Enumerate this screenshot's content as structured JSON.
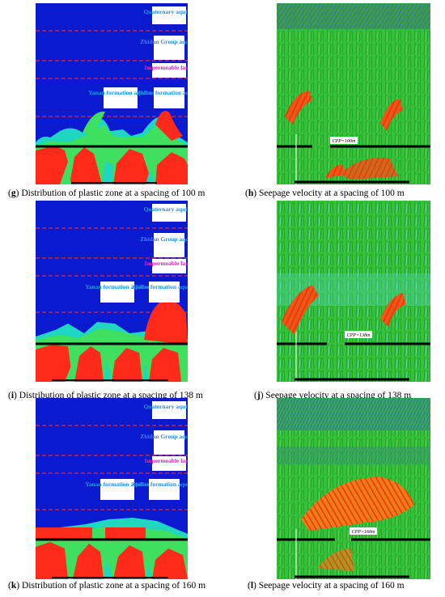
{
  "panels": [
    {
      "letter": "g",
      "caption": "Distribution of plastic zone at a spacing of 100 m",
      "labels": {
        "quaternary": "Quaternary aquifer",
        "zhidan": "Zhidan Group aquifer",
        "impermeable": "Impermeable layer",
        "yanan": "Yanan formation aquifer",
        "zhiluo": "Zhiluo formation aquifer"
      }
    },
    {
      "letter": "h",
      "caption": "Seepage velocity at a spacing of 100 m",
      "tag": "CPP=100m"
    },
    {
      "letter": "i",
      "caption": "Distribution of plastic zone at a spacing of 138 m",
      "labels": {
        "quaternary": "Quaternary aquifer",
        "zhidan": "Zhidan Group aquifer",
        "impermeable": "Impermeable layer",
        "yanan": "Yanan formation aquifer",
        "zhiluo": "Zhiluo formation aquifer"
      }
    },
    {
      "letter": "j",
      "caption": "Seepage velocity at a spacing of 138 m",
      "tag": "CPP=138m"
    },
    {
      "letter": "k",
      "caption": "Distribution of plastic zone at a spacing of 160 m",
      "labels": {
        "quaternary": "Quaternary aquifer",
        "zhidan": "Zhidan Group aquifer",
        "impermeable": "Impermeable layer",
        "yanan": "Yanan formation aquifer",
        "zhiluo": "Zhiluo formation aquifer"
      }
    },
    {
      "letter": "l",
      "caption": "Seepage velocity at a spacing of 160 m",
      "tag": "CPP=160m"
    }
  ]
}
